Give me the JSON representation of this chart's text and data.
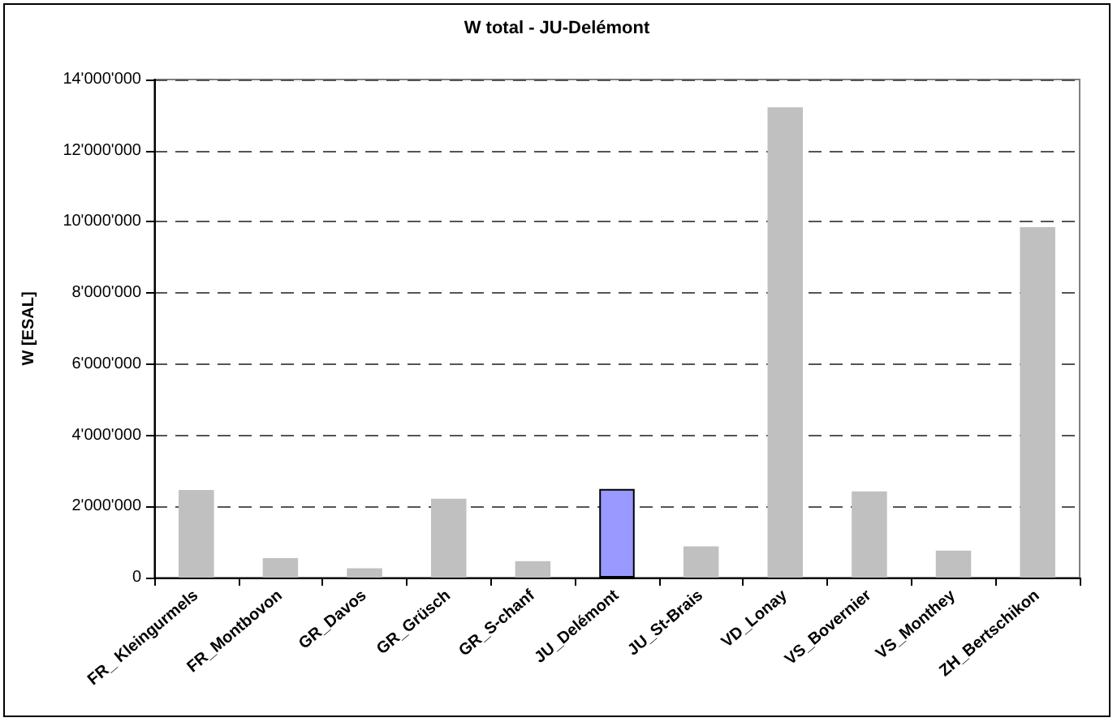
{
  "chart_data": {
    "type": "bar",
    "title": "W total - JU-Delémont",
    "ylabel": "W [ESAL]",
    "categories": [
      "FR_ Kleingurmels",
      "FR_Montbovon",
      "GR_Davos",
      "GR_Grüsch",
      "GR_S-chanf",
      "JU_Delémont",
      "JU_St-Brais",
      "VD_Lonay",
      "VS_Bovernier",
      "VS_Monthey",
      "ZH_Bertschikon"
    ],
    "values": [
      2460000,
      550000,
      260000,
      2220000,
      460000,
      2490000,
      880000,
      13220000,
      2420000,
      760000,
      9850000
    ],
    "colors": [
      "#c0c0c0",
      "#c0c0c0",
      "#c0c0c0",
      "#c0c0c0",
      "#c0c0c0",
      "#9999ff",
      "#c0c0c0",
      "#c0c0c0",
      "#c0c0c0",
      "#c0c0c0",
      "#c0c0c0"
    ],
    "ylim": [
      0,
      14000000
    ],
    "yticks": [
      0,
      {
        "value": 2000000,
        "label": "2'000'000"
      },
      {
        "value": 4000000,
        "label": "4'000'000"
      },
      {
        "value": 6000000,
        "label": "6'000'000"
      },
      {
        "value": 8000000,
        "label": "8'000'000"
      },
      {
        "value": 10000000,
        "label": "10'000'000"
      },
      {
        "value": 12000000,
        "label": "12'000'000"
      },
      {
        "value": 14000000,
        "label": "14'000'000"
      }
    ],
    "grid": "y"
  }
}
